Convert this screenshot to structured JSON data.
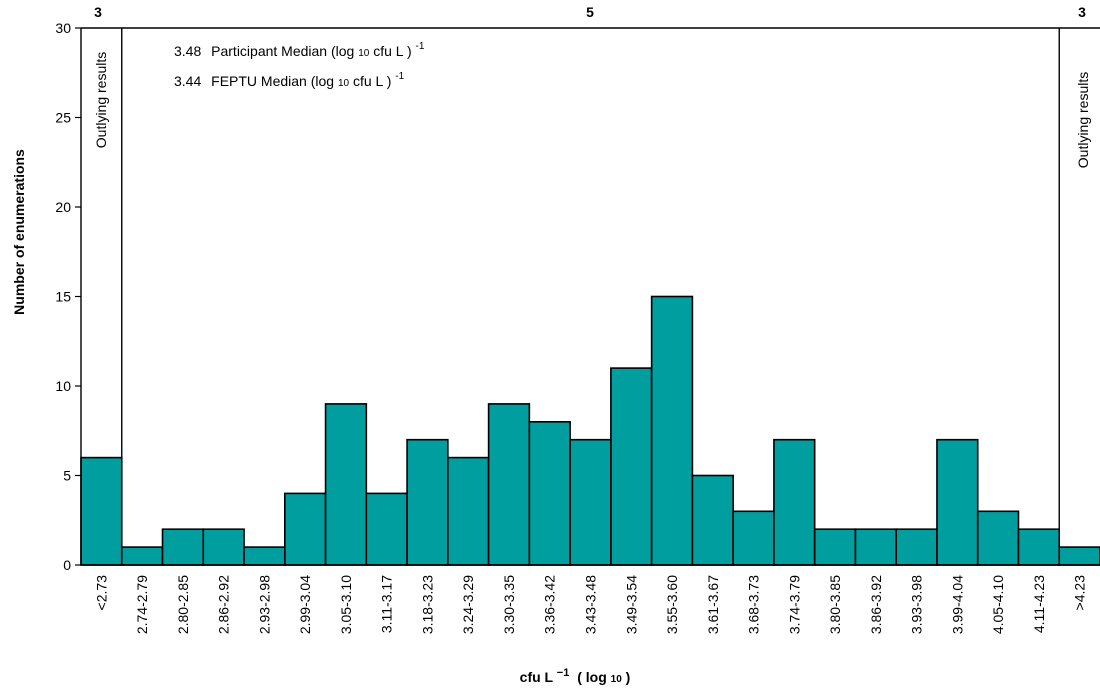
{
  "chart_data": {
    "type": "bar",
    "ylabel": "Number of enumerations",
    "xlabel_main": "cfu L",
    "xlabel_sup": "−1",
    "xlabel_paren": "( log",
    "xlabel_sub": "10",
    "xlabel_close": ")",
    "ylim": [
      0,
      30
    ],
    "yticks": [
      0,
      5,
      10,
      15,
      20,
      25,
      30
    ],
    "bar_color": "#009e9e",
    "categories": [
      "<2.73",
      "2.74-2.79",
      "2.80-2.85",
      "2.86-2.92",
      "2.93-2.98",
      "2.99-3.04",
      "3.05-3.10",
      "3.11-3.17",
      "3.18-3.23",
      "3.24-3.29",
      "3.30-3.35",
      "3.36-3.42",
      "3.43-3.48",
      "3.49-3.54",
      "3.55-3.60",
      "3.61-3.67",
      "3.68-3.73",
      "3.74-3.79",
      "3.80-3.85",
      "3.86-3.92",
      "3.93-3.98",
      "3.99-4.04",
      "4.05-4.10",
      "4.11-4.23",
      ">4.23"
    ],
    "values": [
      6,
      1,
      2,
      2,
      1,
      4,
      9,
      4,
      7,
      6,
      9,
      8,
      7,
      11,
      15,
      5,
      3,
      7,
      2,
      2,
      2,
      7,
      3,
      2,
      1
    ],
    "top_labels": [
      {
        "text": "3",
        "region": "left-outlier"
      },
      {
        "text": "5",
        "region": "main"
      },
      {
        "text": "3",
        "region": "right-outlier"
      }
    ],
    "outlier_label": "Outlying results",
    "annotations": [
      {
        "value": "3.48",
        "label": "Participant Median (log",
        "sub": "10",
        "unit": " cfu L",
        "close": " )",
        "sup": " -1"
      },
      {
        "value": "3.44",
        "label": "FEPTU Median (log",
        "sub": "10",
        "unit": " cfu L",
        "close": "  )",
        "sup": "-1"
      }
    ]
  }
}
